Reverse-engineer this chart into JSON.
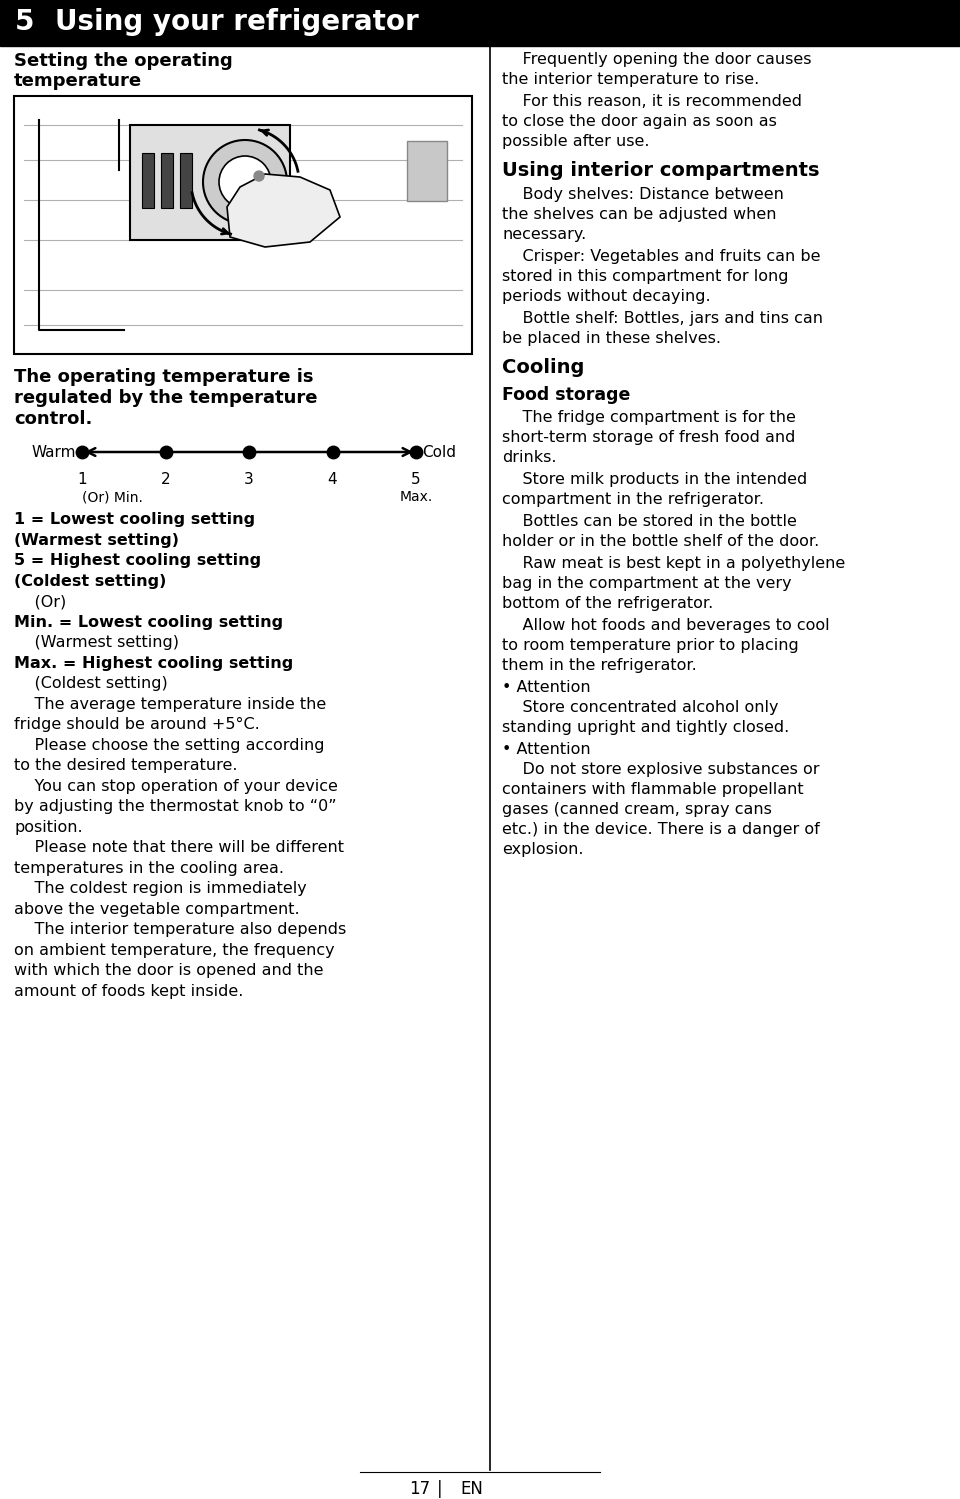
{
  "bg_color": "#ffffff",
  "title_num": "5",
  "title_text": "Using your refrigerator",
  "page_num": "17",
  "page_lang": "EN",
  "left_section_heading": "Setting the operating\ntemperature",
  "body_bold_heading": "The operating temperature is\nregulated by the temperature\ncontrol.",
  "warm_label": "Warm",
  "cold_label": "Cold",
  "dial_numbers": [
    "1",
    "2",
    "3",
    "4",
    "5"
  ],
  "dial_min": "(Or) Min.",
  "dial_max": "Max.",
  "left_legend": [
    {
      "bold": true,
      "text": "1 = Lowest cooling setting"
    },
    {
      "bold": true,
      "text": "(Warmest setting)"
    },
    {
      "bold": true,
      "text": "5 = Highest cooling setting"
    },
    {
      "bold": true,
      "text": "(Coldest setting)"
    },
    {
      "bold": false,
      "text": "    (Or)"
    },
    {
      "bold": true,
      "text": "Min. = Lowest cooling setting"
    },
    {
      "bold": false,
      "text": "    (Warmest setting)"
    },
    {
      "bold": true,
      "text": "Max. = Highest cooling setting"
    },
    {
      "bold": false,
      "text": "    (Coldest setting)"
    },
    {
      "bold": false,
      "text": "    The average temperature inside the"
    },
    {
      "bold": false,
      "text": "fridge should be around +5°C."
    },
    {
      "bold": false,
      "text": "    Please choose the setting according"
    },
    {
      "bold": false,
      "text": "to the desired temperature."
    },
    {
      "bold": false,
      "text": "    You can stop operation of your device"
    },
    {
      "bold": false,
      "text": "by adjusting the thermostat knob to “0”"
    },
    {
      "bold": false,
      "text": "position."
    },
    {
      "bold": false,
      "text": "    Please note that there will be different"
    },
    {
      "bold": false,
      "text": "temperatures in the cooling area."
    },
    {
      "bold": false,
      "text": "    The coldest region is immediately"
    },
    {
      "bold": false,
      "text": "above the vegetable compartment."
    },
    {
      "bold": false,
      "text": "    The interior temperature also depends"
    },
    {
      "bold": false,
      "text": "on ambient temperature, the frequency"
    },
    {
      "bold": false,
      "text": "with which the door is opened and the"
    },
    {
      "bold": false,
      "text": "amount of foods kept inside."
    }
  ],
  "right_col": [
    {
      "type": "para",
      "text": "    Frequently opening the door causes\nthe interior temperature to rise."
    },
    {
      "type": "para",
      "text": "    For this reason, it is recommended\nto close the door again as soon as\npossible after use."
    },
    {
      "type": "heading",
      "text": "Using interior compartments"
    },
    {
      "type": "para",
      "text": "    Body shelves: Distance between\nthe shelves can be adjusted when\nnecessary."
    },
    {
      "type": "para",
      "text": "    Crisper: Vegetables and fruits can be\nstored in this compartment for long\nperiods without decaying."
    },
    {
      "type": "para",
      "text": "    Bottle shelf: Bottles, jars and tins can\nbe placed in these shelves."
    },
    {
      "type": "heading",
      "text": "Cooling"
    },
    {
      "type": "subheading",
      "text": "Food storage"
    },
    {
      "type": "para",
      "text": "    The fridge compartment is for the\nshort-term storage of fresh food and\ndrinks."
    },
    {
      "type": "para",
      "text": "    Store milk products in the intended\ncompartment in the refrigerator."
    },
    {
      "type": "para",
      "text": "    Bottles can be stored in the bottle\nholder or in the bottle shelf of the door."
    },
    {
      "type": "para",
      "text": "    Raw meat is best kept in a polyethylene\nbag in the compartment at the very\nbottom of the refrigerator."
    },
    {
      "type": "para",
      "text": "    Allow hot foods and beverages to cool\nto room temperature prior to placing\nthem in the refrigerator."
    },
    {
      "type": "bullet",
      "text": "• Attention"
    },
    {
      "type": "para",
      "text": "    Store concentrated alcohol only\nstanding upright and tightly closed."
    },
    {
      "type": "bullet",
      "text": "• Attention"
    },
    {
      "type": "para",
      "text": "    Do not store explosive substances or\ncontainers with flammable propellant\ngases (canned cream, spray cans\netc.) in the device. There is a danger of\nexplosion."
    }
  ]
}
